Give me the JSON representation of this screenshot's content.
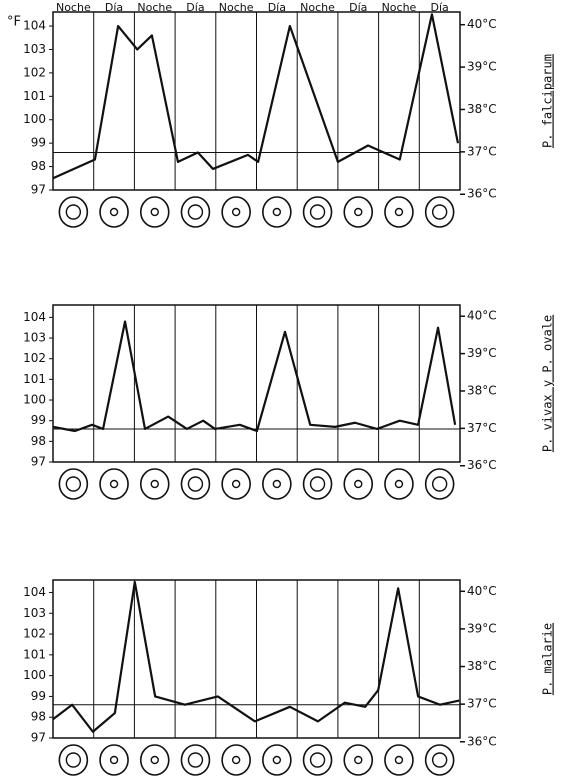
{
  "chart_data": [
    {
      "type": "line",
      "categories": [
        "Noche",
        "Día",
        "Noche",
        "Día",
        "Noche",
        "Día",
        "Noche",
        "Día",
        "Noche",
        "Día"
      ],
      "ylabel": "°F",
      "side_label": "P. falciparum",
      "x": [
        0,
        1.03,
        1.6,
        2.07,
        2.43,
        3.07,
        3.56,
        3.93,
        4.79,
        5.04,
        5.82,
        7,
        7.74,
        8.52,
        9.31,
        9.95
      ],
      "series": [
        {
          "color": "#111111",
          "values": [
            97.5,
            98.3,
            104,
            103,
            103.6,
            98.2,
            98.6,
            97.9,
            98.5,
            98.2,
            104,
            98.2,
            98.9,
            98.3,
            104.5,
            99
          ]
        }
      ],
      "xlim": [
        0,
        10
      ],
      "ylim": [
        97,
        104.6
      ],
      "yticks": [
        97,
        98,
        99,
        100,
        101,
        102,
        103,
        104
      ],
      "y2lim": [
        36.1,
        40.3
      ],
      "y2ticks": [
        {
          "value": 36,
          "label": "36°C"
        },
        {
          "value": 37,
          "label": "37°C"
        },
        {
          "value": 38,
          "label": "38°C"
        },
        {
          "value": 39,
          "label": "39°C"
        },
        {
          "value": 40,
          "label": "40°C"
        }
      ],
      "hline": 98.6
    },
    {
      "type": "line",
      "categories": [
        null,
        null,
        null,
        null,
        null,
        null,
        null,
        null,
        null,
        null
      ],
      "side_label": "P. vivax y P. ovale",
      "x": [
        0,
        0.54,
        0.96,
        1.23,
        1.77,
        2.26,
        2.83,
        3.29,
        3.69,
        3.98,
        4.59,
        5.01,
        5.7,
        6.32,
        6.93,
        7.42,
        7.96,
        8.52,
        8.97,
        9.46,
        9.88
      ],
      "series": [
        {
          "color": "#111111",
          "values": [
            98.7,
            98.5,
            98.8,
            98.6,
            103.8,
            98.6,
            99.2,
            98.6,
            99,
            98.6,
            98.8,
            98.5,
            103.3,
            98.8,
            98.7,
            98.9,
            98.6,
            99,
            98.8,
            103.5,
            98.8
          ]
        }
      ],
      "xlim": [
        0,
        10
      ],
      "ylim": [
        97,
        104.6
      ],
      "yticks": [
        97,
        98,
        99,
        100,
        101,
        102,
        103,
        104
      ],
      "y2lim": [
        36.1,
        40.3
      ],
      "y2ticks": [
        {
          "value": 36,
          "label": "36°C"
        },
        {
          "value": 37,
          "label": "37°C"
        },
        {
          "value": 38,
          "label": "38°C"
        },
        {
          "value": 39,
          "label": "39°C"
        },
        {
          "value": 40,
          "label": "40°C"
        }
      ],
      "hline": 98.6
    },
    {
      "type": "line",
      "categories": [
        null,
        null,
        null,
        null,
        null,
        null,
        null,
        null,
        null,
        null
      ],
      "side_label": "P. malarie",
      "x": [
        0,
        0.47,
        0.98,
        1.52,
        2.01,
        2.51,
        3.24,
        4.05,
        4.96,
        5.82,
        6.51,
        7.17,
        7.67,
        7.99,
        8.48,
        8.97,
        9.51,
        9.98
      ],
      "series": [
        {
          "color": "#111111",
          "values": [
            97.9,
            98.6,
            97.3,
            98.2,
            104.5,
            99,
            98.6,
            99,
            97.8,
            98.5,
            97.8,
            98.7,
            98.5,
            99.3,
            104.2,
            99,
            98.6,
            98.8
          ]
        }
      ],
      "xlim": [
        0,
        10
      ],
      "ylim": [
        97,
        104.6
      ],
      "yticks": [
        97,
        98,
        99,
        100,
        101,
        102,
        103,
        104
      ],
      "y2lim": [
        36.1,
        40.3
      ],
      "y2ticks": [
        {
          "value": 36,
          "label": "36°C"
        },
        {
          "value": 37,
          "label": "37°C"
        },
        {
          "value": 38,
          "label": "38°C"
        },
        {
          "value": 39,
          "label": "39°C"
        },
        {
          "value": 40,
          "label": "40°C"
        }
      ],
      "hline": 98.6
    }
  ]
}
